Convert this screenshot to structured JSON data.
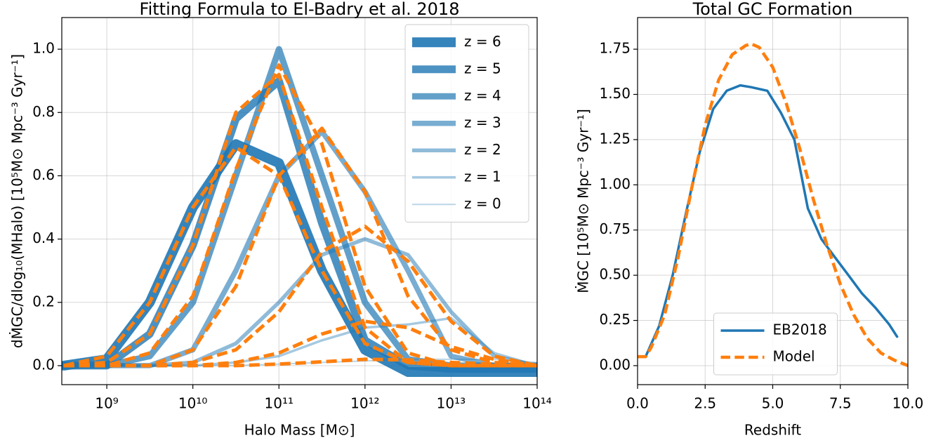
{
  "chart_data": [
    {
      "type": "line",
      "title": "Fitting Formula to El-Badry et al. 2018",
      "xlabel": "Halo Mass [M⊙]",
      "ylabel": "dṀGC/dlog₁₀(MHalo)  [10⁵M⊙ Mpc⁻³ Gyr⁻¹]",
      "xscale": "log",
      "grid": true,
      "legend": "upper right",
      "xlim": [
        300000000.0,
        100000000000000.0
      ],
      "ylim": [
        -0.06,
        1.1
      ],
      "xticks": [
        {
          "value": 1000000000.0,
          "label": "10⁹"
        },
        {
          "value": 10000000000.0,
          "label": "10¹⁰"
        },
        {
          "value": 100000000000.0,
          "label": "10¹¹"
        },
        {
          "value": 1000000000000.0,
          "label": "10¹²"
        },
        {
          "value": 10000000000000.0,
          "label": "10¹³"
        },
        {
          "value": 100000000000000.0,
          "label": "10¹⁴"
        }
      ],
      "yticks": [
        {
          "value": 0,
          "label": "0.0"
        },
        0.2,
        0.4,
        0.6,
        0.8,
        {
          "value": 1,
          "label": "1.0"
        }
      ],
      "x": [
        316000000.0,
        1000000000.0,
        3160000000.0,
        10000000000.0,
        31600000000.0,
        100000000000.0,
        316000000000.0,
        1000000000000.0,
        3160000000000.0,
        10000000000000.0,
        31600000000000.0,
        100000000000000.0
      ],
      "series": [
        {
          "name": "z = 6",
          "color": "#1f77b4",
          "alpha": 0.9,
          "linewidth": 14,
          "values": [
            0.0,
            0.02,
            0.2,
            0.5,
            0.7,
            0.64,
            0.3,
            0.05,
            -0.02,
            -0.02,
            -0.02,
            -0.02
          ]
        },
        {
          "name": "z = 5",
          "color": "#1f77b4",
          "alpha": 0.8,
          "linewidth": 11,
          "values": [
            0.0,
            0.0,
            0.1,
            0.38,
            0.78,
            0.9,
            0.45,
            0.08,
            0.0,
            -0.01,
            -0.01,
            -0.01
          ]
        },
        {
          "name": "z = 4",
          "color": "#1f77b4",
          "alpha": 0.7,
          "linewidth": 9,
          "values": [
            0.0,
            0.0,
            0.03,
            0.2,
            0.6,
            1.0,
            0.6,
            0.2,
            0.02,
            0.0,
            0.0,
            0.0
          ]
        },
        {
          "name": "z = 3",
          "color": "#1f77b4",
          "alpha": 0.6,
          "linewidth": 7.5,
          "values": [
            0.0,
            0.0,
            0.0,
            0.05,
            0.3,
            0.6,
            0.74,
            0.55,
            0.3,
            0.03,
            0.0,
            0.0
          ]
        },
        {
          "name": "z = 2",
          "color": "#1f77b4",
          "alpha": 0.5,
          "linewidth": 5.5,
          "values": [
            0.0,
            0.0,
            0.0,
            0.01,
            0.07,
            0.2,
            0.35,
            0.4,
            0.35,
            0.17,
            0.03,
            0.0
          ]
        },
        {
          "name": "z = 1",
          "color": "#1f77b4",
          "alpha": 0.4,
          "linewidth": 3.5,
          "values": [
            0.0,
            0.0,
            0.0,
            0.0,
            0.01,
            0.03,
            0.08,
            0.12,
            0.13,
            0.15,
            0.04,
            0.0
          ]
        },
        {
          "name": "z = 0",
          "color": "#1f77b4",
          "alpha": 0.3,
          "linewidth": 2,
          "values": [
            0.0,
            0.0,
            0.0,
            0.0,
            0.0,
            0.005,
            0.01,
            0.015,
            0.02,
            0.02,
            0.02,
            0.01
          ]
        },
        {
          "color": "#ff7f0e",
          "dash": true,
          "linewidth": 5,
          "values": [
            0.0,
            0.03,
            0.2,
            0.5,
            0.69,
            0.6,
            0.3,
            0.07,
            0.01,
            0.0,
            0.0,
            0.0
          ]
        },
        {
          "color": "#ff7f0e",
          "dash": true,
          "linewidth": 5,
          "values": [
            0.0,
            0.01,
            0.1,
            0.38,
            0.8,
            0.92,
            0.5,
            0.12,
            0.01,
            0.0,
            0.0,
            0.0
          ]
        },
        {
          "color": "#ff7f0e",
          "dash": true,
          "linewidth": 5,
          "values": [
            0.0,
            0.0,
            0.04,
            0.22,
            0.62,
            0.95,
            0.7,
            0.25,
            0.04,
            0.0,
            0.0,
            0.0
          ]
        },
        {
          "color": "#ff7f0e",
          "dash": true,
          "linewidth": 5,
          "values": [
            0.0,
            0.0,
            0.0,
            0.05,
            0.25,
            0.6,
            0.75,
            0.55,
            0.22,
            0.05,
            0.01,
            0.0
          ]
        },
        {
          "color": "#ff7f0e",
          "dash": true,
          "linewidth": 5,
          "values": [
            0.0,
            0.0,
            0.0,
            0.01,
            0.05,
            0.17,
            0.36,
            0.44,
            0.33,
            0.14,
            0.03,
            0.0
          ]
        },
        {
          "color": "#ff7f0e",
          "dash": true,
          "linewidth": 5,
          "values": [
            0.0,
            0.0,
            0.0,
            0.0,
            0.01,
            0.04,
            0.1,
            0.14,
            0.12,
            0.06,
            0.02,
            0.0
          ]
        },
        {
          "color": "#ff7f0e",
          "dash": true,
          "linewidth": 5,
          "values": [
            0.0,
            0.0,
            0.0,
            0.0,
            0.0,
            0.005,
            0.012,
            0.02,
            0.018,
            0.01,
            0.005,
            0.0
          ]
        }
      ]
    },
    {
      "type": "line",
      "title": "Total GC Formation",
      "xlabel": "Redshift",
      "ylabel": "ṀGC [10⁵M⊙ Mpc⁻³ Gyr⁻¹]",
      "grid": true,
      "legend": "lower center",
      "xlim": [
        0,
        10
      ],
      "ylim": [
        -0.105,
        1.925
      ],
      "xticks": [
        {
          "value": 0,
          "label": "0.0"
        },
        2.5,
        {
          "value": 5,
          "label": "5.0"
        },
        7.5,
        {
          "value": 10,
          "label": "10.0"
        }
      ],
      "yticks": [
        {
          "value": 0,
          "label": "0.00"
        },
        0.25,
        {
          "value": 0.5,
          "label": "0.50"
        },
        0.75,
        {
          "value": 1,
          "label": "1.00"
        },
        1.25,
        {
          "value": 1.5,
          "label": "1.50"
        },
        1.75
      ],
      "series": [
        {
          "name": "EB2018",
          "color": "#1f77b4",
          "linewidth": 3.5,
          "x": [
            0.0,
            0.3,
            0.8,
            1.3,
            1.8,
            2.3,
            2.8,
            3.3,
            3.8,
            4.2,
            4.8,
            5.3,
            5.8,
            6.3,
            6.8,
            7.3,
            7.8,
            8.3,
            8.8,
            9.3,
            9.6
          ],
          "values": [
            0.05,
            0.05,
            0.22,
            0.5,
            0.85,
            1.18,
            1.42,
            1.52,
            1.55,
            1.54,
            1.52,
            1.4,
            1.25,
            0.87,
            0.7,
            0.6,
            0.5,
            0.4,
            0.32,
            0.23,
            0.16
          ]
        },
        {
          "name": "Model",
          "color": "#ff7f0e",
          "dash": true,
          "linewidth": 4.5,
          "x": [
            0,
            0.3,
            0.5,
            1,
            1.5,
            2,
            2.5,
            3,
            3.5,
            4,
            4.2,
            4.5,
            5,
            5.5,
            6,
            6.5,
            7,
            7.5,
            8,
            8.5,
            9,
            9.5,
            10
          ],
          "values": [
            0.05,
            0.05,
            0.1,
            0.28,
            0.6,
            0.98,
            1.33,
            1.58,
            1.72,
            1.77,
            1.78,
            1.76,
            1.65,
            1.45,
            1.2,
            0.92,
            0.67,
            0.45,
            0.28,
            0.15,
            0.07,
            0.03,
            0.0
          ]
        }
      ]
    }
  ]
}
